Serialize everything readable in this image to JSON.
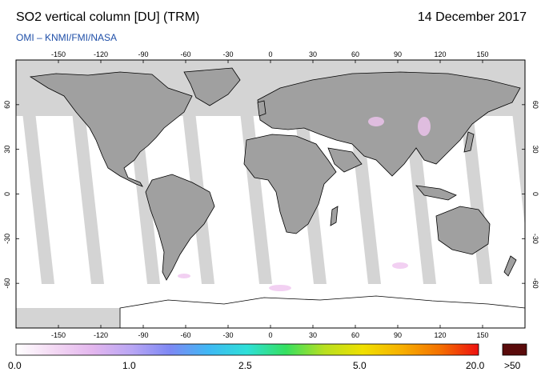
{
  "header": {
    "title": "SO2 vertical column [DU] (TRM)",
    "date": "14 December 2017",
    "credit": "OMI  –  KNMI/FMI/NASA"
  },
  "map": {
    "lon_ticks": [
      "-150",
      "-120",
      "-90",
      "-60",
      "-30",
      "0",
      "30",
      "60",
      "90",
      "120",
      "150"
    ],
    "lat_ticks": [
      "60",
      "30",
      "0",
      "-30",
      "-60"
    ],
    "colors": {
      "no_data": "#d4d4d4",
      "land": "#a0a0a0",
      "ocean_data": "#ffffff",
      "border": "#000000"
    }
  },
  "colorbar": {
    "labels": [
      "0.0",
      "1.0",
      "2.5",
      "5.0",
      "20.0"
    ],
    "overflow_label": ">50",
    "overflow_color": "#5a0b0b",
    "stops": [
      "#ffffff",
      "#f3d8f3",
      "#e3b6ee",
      "#b9a6f4",
      "#7d88f4",
      "#3fb8f4",
      "#2ee0d8",
      "#35e060",
      "#b8e020",
      "#f0e000",
      "#f7b000",
      "#f47000",
      "#ee1010"
    ]
  }
}
